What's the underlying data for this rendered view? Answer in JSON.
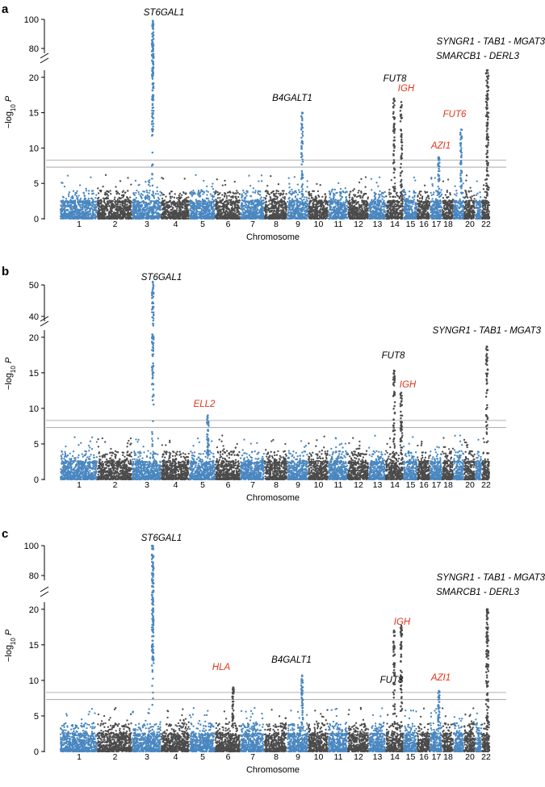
{
  "chart_data": [
    {
      "type": "scatter",
      "subtype": "manhattan",
      "panel": "a",
      "xlabel": "Chromosome",
      "ylabel": "−log10 P",
      "ylabel_parts": {
        "prefix": "−log",
        "sub": "10",
        "var": "P"
      },
      "y_break": {
        "lower": [
          0,
          21
        ],
        "upper": [
          75,
          100
        ]
      },
      "y_ticks": [
        0,
        5,
        10,
        15,
        20,
        80,
        100
      ],
      "thresholds": [
        7.3,
        8.3
      ],
      "chromosomes": [
        "1",
        "2",
        "3",
        "4",
        "5",
        "6",
        "7",
        "8",
        "9",
        "10",
        "11",
        "12",
        "13",
        "14",
        "15",
        "16",
        "17",
        "18",
        "19",
        "20",
        "21",
        "22"
      ],
      "chromosome_tick_labels": [
        "1",
        "2",
        "3",
        "4",
        "5",
        "6",
        "7",
        "8",
        "9",
        "10",
        "11",
        "12",
        "13",
        "14",
        "15",
        "16",
        "17",
        "18",
        "",
        "20",
        "",
        "22"
      ],
      "peaks": [
        {
          "label": "ST6GAL1",
          "chr": "3",
          "peak": 99,
          "color": "#000000"
        },
        {
          "label": "B4GALT1",
          "chr": "9",
          "peak": 15,
          "color": "#000000"
        },
        {
          "label": "FUT8",
          "chr": "14",
          "peak": 17,
          "color": "#000000"
        },
        {
          "label": "IGH",
          "chr": "14",
          "peak": 16.5,
          "color": "#e0341c"
        },
        {
          "label": "FUT6",
          "chr": "19",
          "peak": 12.6,
          "color": "#e0341c"
        },
        {
          "label": "AZI1",
          "chr": "17",
          "peak": 8.7,
          "color": "#e0341c"
        },
        {
          "label": "SMARCB1 - DERL3",
          "chr": "22",
          "peak": 21,
          "color": "#000000"
        },
        {
          "label": "SYNGR1 - TAB1 - MGAT3",
          "chr": "22",
          "peak": 21,
          "color": "#000000"
        }
      ]
    },
    {
      "type": "scatter",
      "subtype": "manhattan",
      "panel": "b",
      "xlabel": "Chromosome",
      "ylabel": "−log10 P",
      "ylabel_parts": {
        "prefix": "−log",
        "sub": "10",
        "var": "P"
      },
      "y_break": {
        "lower": [
          0,
          21
        ],
        "upper": [
          36,
          52
        ]
      },
      "y_ticks": [
        0,
        5,
        10,
        15,
        20,
        40,
        50
      ],
      "thresholds": [
        7.3,
        8.3
      ],
      "chromosomes": [
        "1",
        "2",
        "3",
        "4",
        "5",
        "6",
        "7",
        "8",
        "9",
        "10",
        "11",
        "12",
        "13",
        "14",
        "15",
        "16",
        "17",
        "18",
        "19",
        "20",
        "21",
        "22"
      ],
      "chromosome_tick_labels": [
        "1",
        "2",
        "3",
        "4",
        "5",
        "6",
        "7",
        "8",
        "9",
        "10",
        "11",
        "12",
        "13",
        "14",
        "15",
        "16",
        "17",
        "18",
        "",
        "20",
        "",
        "22"
      ],
      "peaks": [
        {
          "label": "ST6GAL1",
          "chr": "3",
          "peak": 51,
          "color": "#000000"
        },
        {
          "label": "ELL2",
          "chr": "5",
          "peak": 9,
          "color": "#e0341c"
        },
        {
          "label": "FUT8",
          "chr": "14",
          "peak": 15.3,
          "color": "#000000"
        },
        {
          "label": "IGH",
          "chr": "14",
          "peak": 12.2,
          "color": "#e0341c"
        },
        {
          "label": "SYNGR1 - TAB1 - MGAT3",
          "chr": "22",
          "peak": 18.7,
          "color": "#000000"
        }
      ]
    },
    {
      "type": "scatter",
      "subtype": "manhattan",
      "panel": "c",
      "xlabel": "Chromosome",
      "ylabel": "−log10 P",
      "ylabel_parts": {
        "prefix": "−log",
        "sub": "10",
        "var": "P"
      },
      "y_break": {
        "lower": [
          0,
          21
        ],
        "upper": [
          75,
          100
        ]
      },
      "y_ticks": [
        0,
        5,
        10,
        15,
        20,
        80,
        100
      ],
      "thresholds": [
        7.3,
        8.3
      ],
      "chromosomes": [
        "1",
        "2",
        "3",
        "4",
        "5",
        "6",
        "7",
        "8",
        "9",
        "10",
        "11",
        "12",
        "13",
        "14",
        "15",
        "16",
        "17",
        "18",
        "19",
        "20",
        "21",
        "22"
      ],
      "chromosome_tick_labels": [
        "1",
        "2",
        "3",
        "4",
        "5",
        "6",
        "7",
        "8",
        "9",
        "10",
        "11",
        "12",
        "13",
        "14",
        "15",
        "16",
        "17",
        "18",
        "",
        "20",
        "",
        "22"
      ],
      "peaks": [
        {
          "label": "ST6GAL1",
          "chr": "3",
          "peak": 100,
          "color": "#000000"
        },
        {
          "label": "HLA",
          "chr": "6",
          "peak": 9,
          "color": "#e0341c"
        },
        {
          "label": "B4GALT1",
          "chr": "9",
          "peak": 10.7,
          "color": "#000000"
        },
        {
          "label": "FUT8",
          "chr": "14",
          "peak": 17,
          "color": "#000000"
        },
        {
          "label": "IGH",
          "chr": "14",
          "peak": 17.7,
          "color": "#e0341c"
        },
        {
          "label": "AZI1",
          "chr": "17",
          "peak": 8.5,
          "color": "#e0341c"
        },
        {
          "label": "SMARCB1 - DERL3",
          "chr": "22",
          "peak": 20,
          "color": "#000000"
        },
        {
          "label": "SYNGR1 - TAB1 - MGAT3",
          "chr": "22",
          "peak": 20,
          "color": "#000000"
        }
      ]
    }
  ],
  "colors": {
    "blue": "#4a87c0",
    "gray": "#4b4b4b",
    "highlight": "#e0341c",
    "threshold": "#9a9a9a"
  }
}
